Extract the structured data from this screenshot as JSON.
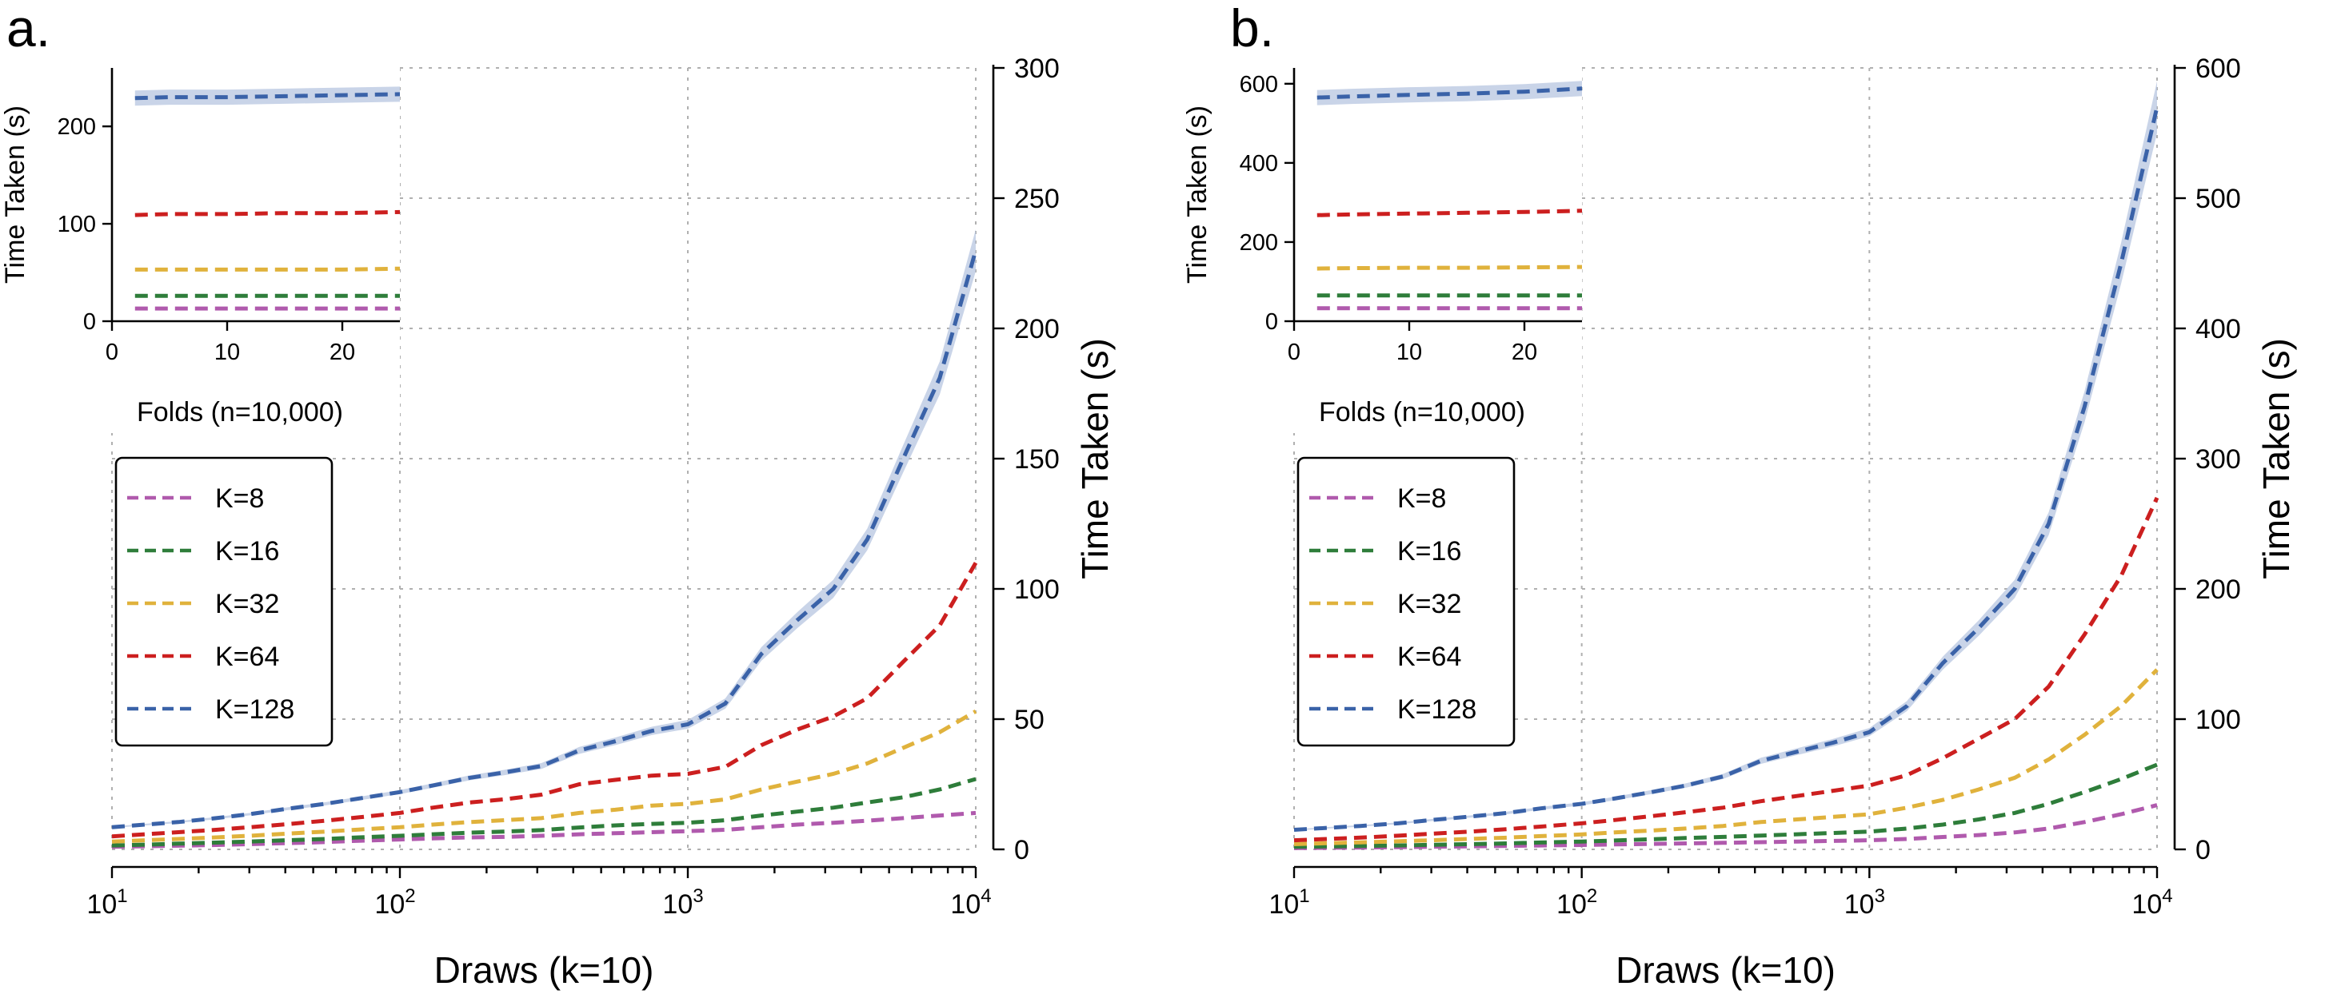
{
  "figure": {
    "panels": [
      "a.",
      "b."
    ],
    "legend": [
      "K=8",
      "K=16",
      "K=32",
      "K=64",
      "K=128"
    ],
    "series_colors": {
      "K=8": "#b05aad",
      "K=16": "#2e7d3a",
      "K=32": "#e0b23c",
      "K=64": "#cc1f1f",
      "K=128": "#3a62a8"
    },
    "band_color": "#b7c6e0"
  },
  "chart_data": [
    {
      "type": "line",
      "panel": "a.",
      "xlabel": "Draws (k=10)",
      "ylabel": "Time Taken (s)",
      "xscale": "log",
      "xlim": [
        10,
        10000
      ],
      "xticks": [
        {
          "label": "10",
          "exp": "1"
        },
        {
          "label": "10",
          "exp": "2"
        },
        {
          "label": "10",
          "exp": "3"
        },
        {
          "label": "10",
          "exp": "4"
        }
      ],
      "ylim": [
        0,
        300
      ],
      "yticks": [
        "0",
        "50",
        "100",
        "150",
        "200",
        "250",
        "300"
      ],
      "yaxis_side": "right",
      "grid": true,
      "legend_position": "center-left",
      "x": [
        10,
        13,
        17,
        23,
        30,
        40,
        55,
        72,
        100,
        130,
        175,
        230,
        310,
        420,
        560,
        750,
        1000,
        1350,
        1800,
        2400,
        3200,
        4200,
        5600,
        7500,
        10000
      ],
      "series": [
        {
          "name": "K=8",
          "values": [
            1,
            1.2,
            1.4,
            1.7,
            2,
            2.4,
            2.8,
            3.3,
            3.8,
            4.2,
            4.6,
            4.8,
            5.2,
            5.8,
            6.2,
            6.6,
            7,
            7.5,
            8.5,
            9.5,
            10.2,
            11,
            12,
            13,
            14
          ]
        },
        {
          "name": "K=16",
          "values": [
            1.5,
            1.8,
            2.2,
            2.6,
            3,
            3.5,
            4,
            4.6,
            5.2,
            5.8,
            6.4,
            6.8,
            7.4,
            8.4,
            9.2,
            9.8,
            10.2,
            11.2,
            13,
            14.5,
            16,
            18,
            20,
            23,
            27
          ]
        },
        {
          "name": "K=32",
          "values": [
            3,
            3.5,
            4,
            4.6,
            5.2,
            6,
            6.8,
            7.6,
            8.5,
            9.5,
            10.5,
            11.2,
            12,
            14,
            15.2,
            16.8,
            17.5,
            19.2,
            23,
            26,
            29,
            33,
            39,
            45,
            53
          ]
        },
        {
          "name": "K=64",
          "values": [
            5,
            5.8,
            6.6,
            7.5,
            8.5,
            9.6,
            11,
            12.3,
            14,
            16,
            18,
            19.2,
            21,
            25,
            26.7,
            28.3,
            29,
            31.7,
            40,
            46,
            51,
            58,
            72,
            86,
            110
          ]
        },
        {
          "name": "K=128",
          "values": [
            8.5,
            9.5,
            10.5,
            12,
            13.5,
            15.5,
            17.5,
            19.5,
            22,
            24.5,
            27.5,
            29.5,
            32,
            38,
            41.5,
            45.5,
            48,
            56,
            75,
            88,
            100,
            119,
            150,
            181,
            230
          ]
        }
      ],
      "inset": {
        "type": "line",
        "xlabel": "Folds (n=10,000)",
        "ylabel": "Time Taken (s)",
        "xlim": [
          0,
          25
        ],
        "xticks": [
          "0",
          "10",
          "20"
        ],
        "ylim": [
          0,
          260
        ],
        "yticks": [
          "0",
          "100",
          "200"
        ],
        "x": [
          2,
          5,
          10,
          15,
          20,
          25
        ],
        "series": [
          {
            "name": "K=8",
            "values": [
              13,
              13,
              13,
              13,
              13,
              13
            ]
          },
          {
            "name": "K=16",
            "values": [
              26,
              26,
              26,
              26,
              26,
              26
            ]
          },
          {
            "name": "K=32",
            "values": [
              53,
              53,
              53,
              53,
              53,
              54
            ]
          },
          {
            "name": "K=64",
            "values": [
              109,
              110,
              110,
              111,
              111,
              112
            ]
          },
          {
            "name": "K=128",
            "values": [
              229,
              230,
              230,
              231,
              232,
              233
            ]
          }
        ]
      }
    },
    {
      "type": "line",
      "panel": "b.",
      "xlabel": "Draws (k=10)",
      "ylabel": "Time Taken (s)",
      "xscale": "log",
      "xlim": [
        10,
        10000
      ],
      "xticks": [
        {
          "label": "10",
          "exp": "1"
        },
        {
          "label": "10",
          "exp": "2"
        },
        {
          "label": "10",
          "exp": "3"
        },
        {
          "label": "10",
          "exp": "4"
        }
      ],
      "ylim": [
        0,
        600
      ],
      "yticks": [
        "0",
        "100",
        "200",
        "300",
        "400",
        "500",
        "600"
      ],
      "yaxis_side": "right",
      "grid": true,
      "legend_position": "center-left",
      "x": [
        10,
        13,
        17,
        23,
        30,
        40,
        55,
        72,
        100,
        130,
        175,
        230,
        310,
        420,
        560,
        750,
        1000,
        1350,
        1800,
        2400,
        3200,
        4200,
        5600,
        7500,
        10000
      ],
      "series": [
        {
          "name": "K=8",
          "values": [
            1,
            1.2,
            1.4,
            1.7,
            2,
            2.3,
            2.7,
            3,
            3.4,
            3.8,
            4.2,
            4.6,
            5,
            5.5,
            6,
            6.5,
            7,
            8,
            9.5,
            11,
            13,
            16,
            21,
            27,
            34
          ]
        },
        {
          "name": "K=16",
          "values": [
            2,
            2.3,
            2.6,
            3,
            3.5,
            4,
            4.6,
            5.3,
            6,
            6.8,
            7.8,
            8.7,
            9.6,
            10.6,
            11.6,
            12.6,
            13.6,
            16,
            19,
            23,
            28,
            35,
            44,
            54,
            65
          ]
        },
        {
          "name": "K=32",
          "values": [
            4,
            4.7,
            5.4,
            6.2,
            7,
            8,
            9,
            10.2,
            11.5,
            13,
            14.5,
            16,
            18,
            21,
            23,
            25,
            27,
            32,
            38,
            46,
            55,
            69,
            88,
            110,
            138
          ]
        },
        {
          "name": "K=64",
          "values": [
            7,
            8,
            9,
            10.5,
            12,
            13.5,
            15.5,
            17.5,
            20,
            22.5,
            25.5,
            28.5,
            32,
            37,
            41,
            45,
            49,
            57,
            70,
            85,
            100,
            125,
            165,
            210,
            270
          ]
        },
        {
          "name": "K=128",
          "values": [
            15,
            16.5,
            18,
            20,
            22.5,
            25,
            28,
            31.5,
            35,
            39,
            44,
            49,
            56,
            68,
            75,
            82,
            90,
            110,
            143,
            170,
            200,
            250,
            340,
            450,
            570
          ]
        }
      ],
      "inset": {
        "type": "line",
        "xlabel": "Folds (n=10,000)",
        "ylabel": "Time Taken (s)",
        "xlim": [
          0,
          25
        ],
        "xticks": [
          "0",
          "10",
          "20"
        ],
        "ylim": [
          0,
          640
        ],
        "yticks": [
          "0",
          "200",
          "400",
          "600"
        ],
        "x": [
          2,
          5,
          10,
          15,
          20,
          25
        ],
        "series": [
          {
            "name": "K=8",
            "values": [
              33,
              33,
              33,
              33,
              33,
              33
            ]
          },
          {
            "name": "K=16",
            "values": [
              65,
              65,
              65,
              65,
              65,
              65
            ]
          },
          {
            "name": "K=32",
            "values": [
              133,
              134,
              135,
              135,
              136,
              137
            ]
          },
          {
            "name": "K=64",
            "values": [
              268,
              270,
              272,
              274,
              276,
              279
            ]
          },
          {
            "name": "K=128",
            "values": [
              565,
              568,
              572,
              575,
              580,
              588
            ]
          }
        ]
      }
    }
  ]
}
